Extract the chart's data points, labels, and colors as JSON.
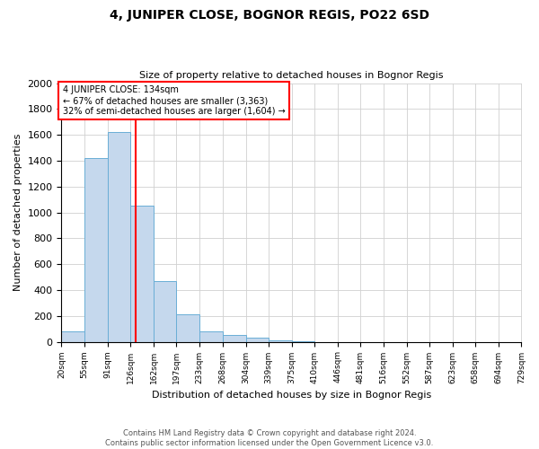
{
  "title": "4, JUNIPER CLOSE, BOGNOR REGIS, PO22 6SD",
  "subtitle": "Size of property relative to detached houses in Bognor Regis",
  "xlabel": "Distribution of detached houses by size in Bognor Regis",
  "ylabel": "Number of detached properties",
  "footer_line1": "Contains HM Land Registry data © Crown copyright and database right 2024.",
  "footer_line2": "Contains public sector information licensed under the Open Government Licence v3.0.",
  "bin_edges": [
    20,
    55,
    91,
    126,
    162,
    197,
    233,
    268,
    304,
    339,
    375,
    410,
    446,
    481,
    516,
    552,
    587,
    623,
    658,
    694,
    729
  ],
  "bin_labels": [
    "20sqm",
    "55sqm",
    "91sqm",
    "126sqm",
    "162sqm",
    "197sqm",
    "233sqm",
    "268sqm",
    "304sqm",
    "339sqm",
    "375sqm",
    "410sqm",
    "446sqm",
    "481sqm",
    "516sqm",
    "552sqm",
    "587sqm",
    "623sqm",
    "658sqm",
    "694sqm",
    "729sqm"
  ],
  "bar_heights": [
    80,
    1420,
    1620,
    1050,
    470,
    210,
    80,
    55,
    30,
    10,
    5,
    0,
    0,
    0,
    0,
    0,
    0,
    0,
    0,
    0
  ],
  "bar_color": "#c5d8ed",
  "bar_edge_color": "#6aaed6",
  "property_size": 134,
  "vline_color": "red",
  "annotation_text": "4 JUNIPER CLOSE: 134sqm\n← 67% of detached houses are smaller (3,363)\n32% of semi-detached houses are larger (1,604) →",
  "annotation_box_color": "white",
  "annotation_box_edge_color": "red",
  "ylim": [
    0,
    2000
  ],
  "yticks": [
    0,
    200,
    400,
    600,
    800,
    1000,
    1200,
    1400,
    1600,
    1800,
    2000
  ],
  "grid_color": "#d0d0d0",
  "background_color": "white"
}
